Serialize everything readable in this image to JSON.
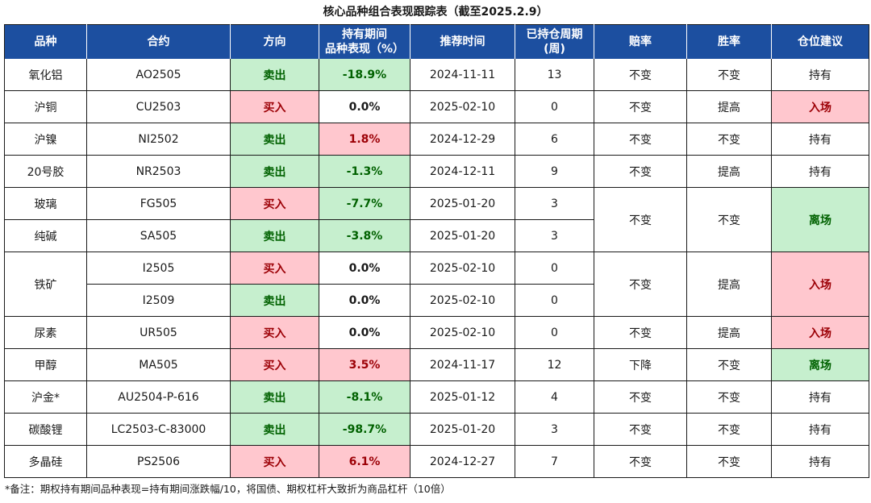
{
  "title": "核心品种组合表现跟踪表（截至2025.2.9）",
  "headers": {
    "variety": "品种",
    "contract": "合约",
    "direction": "方向",
    "perf_line1": "持有期间",
    "perf_line2": "品种表现（%）",
    "rec_time": "推荐时间",
    "weeks_line1": "已持仓周期",
    "weeks_line2": "(周)",
    "odds": "赔率",
    "winrate": "胜率",
    "advice": "仓位建议"
  },
  "rows": [
    {
      "variety": "氧化铝",
      "contract": "AO2505",
      "direction": "卖出",
      "performance": "-18.9%",
      "rec_time": "2024-11-11",
      "weeks": "13",
      "odds": "不变",
      "winrate": "不变",
      "advice": "持有"
    },
    {
      "variety": "沪铜",
      "contract": "CU2503",
      "direction": "买入",
      "performance": "0.0%",
      "rec_time": "2025-02-10",
      "weeks": "0",
      "odds": "不变",
      "winrate": "提高",
      "advice": "入场"
    },
    {
      "variety": "沪镍",
      "contract": "NI2502",
      "direction": "卖出",
      "performance": "1.8%",
      "rec_time": "2024-12-29",
      "weeks": "6",
      "odds": "不变",
      "winrate": "不变",
      "advice": "持有"
    },
    {
      "variety": "20号胶",
      "contract": "NR2503",
      "direction": "卖出",
      "performance": "-1.3%",
      "rec_time": "2024-12-11",
      "weeks": "9",
      "odds": "不变",
      "winrate": "提高",
      "advice": "持有"
    },
    {
      "variety": "玻璃",
      "contract": "FG505",
      "direction": "买入",
      "performance": "-7.7%",
      "rec_time": "2025-01-20",
      "weeks": "3",
      "odds": "不变",
      "winrate": "不变",
      "advice": "离场"
    },
    {
      "variety": "纯碱",
      "contract": "SA505",
      "direction": "卖出",
      "performance": "-3.8%",
      "rec_time": "2025-01-20",
      "weeks": "3"
    },
    {
      "variety": "铁矿",
      "contract": "I2505",
      "direction": "买入",
      "performance": "0.0%",
      "rec_time": "2025-02-10",
      "weeks": "0",
      "odds": "不变",
      "winrate": "提高",
      "advice": "入场"
    },
    {
      "contract": "I2509",
      "direction": "卖出",
      "performance": "0.0%",
      "rec_time": "2025-02-10",
      "weeks": "0"
    },
    {
      "variety": "尿素",
      "contract": "UR505",
      "direction": "买入",
      "performance": "0.0%",
      "rec_time": "2025-02-10",
      "weeks": "0",
      "odds": "不变",
      "winrate": "提高",
      "advice": "入场"
    },
    {
      "variety": "甲醇",
      "contract": "MA505",
      "direction": "买入",
      "performance": "3.5%",
      "rec_time": "2024-11-17",
      "weeks": "12",
      "odds": "下降",
      "winrate": "不变",
      "advice": "离场"
    },
    {
      "variety": "沪金*",
      "contract": "AU2504-P-616",
      "direction": "卖出",
      "performance": "-8.1%",
      "rec_time": "2025-01-12",
      "weeks": "4",
      "odds": "不变",
      "winrate": "不变",
      "advice": "持有"
    },
    {
      "variety": "碳酸锂",
      "contract": "LC2503-C-83000",
      "direction": "卖出",
      "performance": "-98.7%",
      "rec_time": "2025-01-20",
      "weeks": "3",
      "odds": "不变",
      "winrate": "不变",
      "advice": "持有"
    },
    {
      "variety": "多晶硅",
      "contract": "PS2506",
      "direction": "买入",
      "performance": "6.1%",
      "rec_time": "2024-12-27",
      "weeks": "7",
      "odds": "不变",
      "winrate": "不变",
      "advice": "持有"
    }
  ],
  "footnote": "*备注：期权持有期间品种表现=持有期间涨跌幅/10，将国债、期权杠杆大致折为商品杠杆（10倍）"
}
